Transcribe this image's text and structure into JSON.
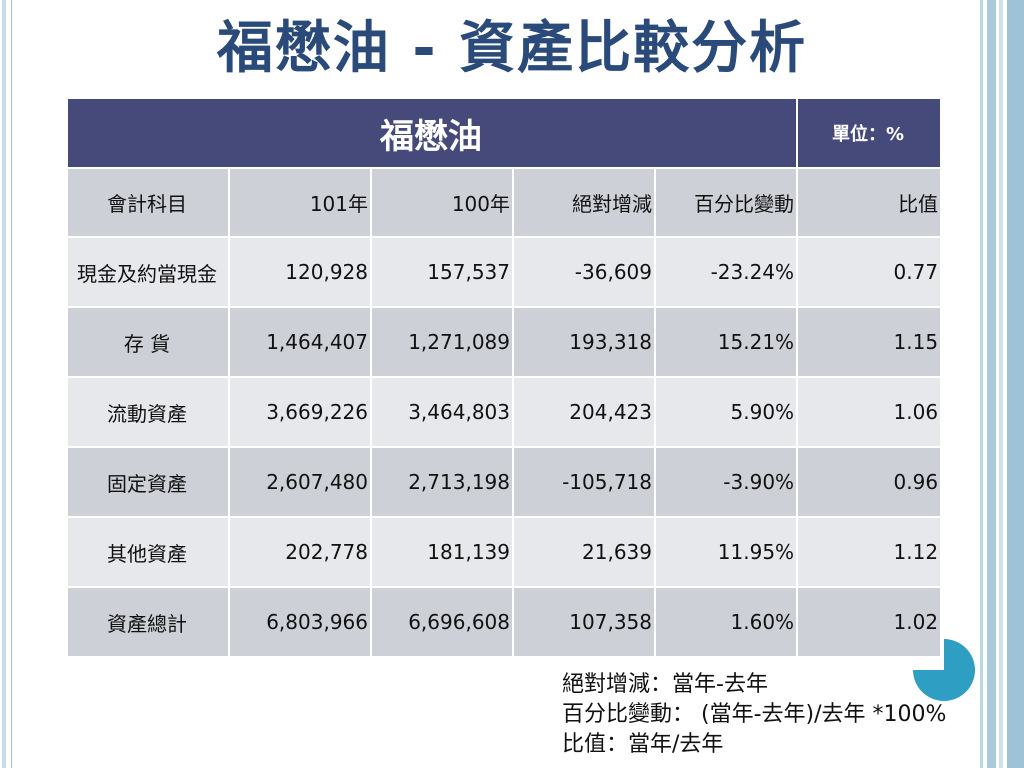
{
  "title": "福懋油 - 資產比較分析",
  "table": {
    "company": "福懋油",
    "unit": "單位：%",
    "headers": [
      "會計科目",
      "101年",
      "100年",
      "絕對增減",
      "百分比變動",
      "比值"
    ],
    "rows": [
      [
        "現金及約當現金",
        "120,928",
        "157,537",
        "-36,609",
        "-23.24%",
        "0.77"
      ],
      [
        "存 貨",
        "1,464,407",
        "1,271,089",
        "193,318",
        "15.21%",
        "1.15"
      ],
      [
        "流動資產",
        "3,669,226",
        "3,464,803",
        "204,423",
        "5.90%",
        "1.06"
      ],
      [
        "固定資產",
        "2,607,480",
        "2,713,198",
        "-105,718",
        "-3.90%",
        "0.96"
      ],
      [
        "其他資產",
        "202,778",
        "181,139",
        "21,639",
        "11.95%",
        "1.12"
      ],
      [
        "資產總計",
        "6,803,966",
        "6,696,608",
        "107,358",
        "1.60%",
        "1.02"
      ]
    ]
  },
  "notes": [
    "絕對增減：當年-去年",
    "百分比變動： (當年-去年)/去年 *100%",
    "比值：當年/去年"
  ],
  "colors": {
    "title": "#2a4a7a",
    "header_bg": "#464a7a",
    "row_dark": "#cdd0d6",
    "row_light": "#e7e8ec",
    "accent_circle": "#2e9fc3"
  }
}
